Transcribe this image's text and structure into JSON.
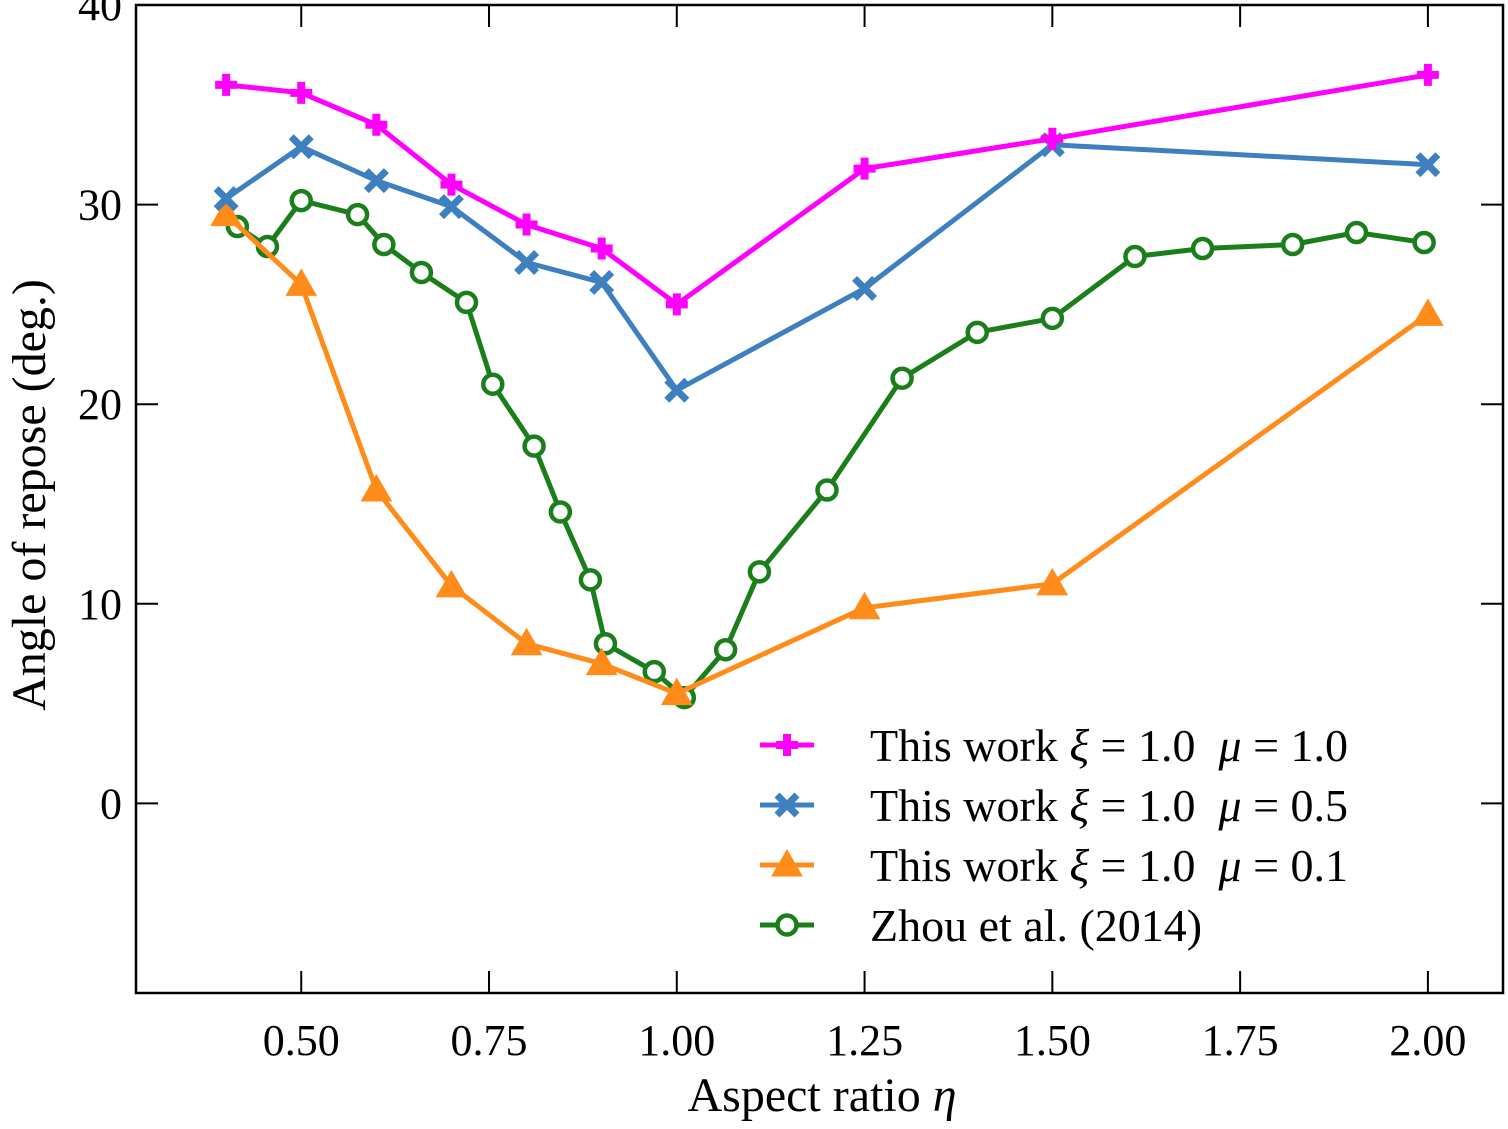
{
  "chart_data": {
    "type": "line",
    "title": "",
    "xlabel": "Aspect ratio",
    "xlabel_symbol": "η",
    "ylabel": "Angle of repose (deg.)",
    "xlim": [
      0.28,
      2.1
    ],
    "ylim": [
      -9.5,
      40
    ],
    "xticks": [
      0.5,
      0.75,
      1.0,
      1.25,
      1.5,
      1.75,
      2.0
    ],
    "xtick_labels": [
      "0.50",
      "0.75",
      "1.00",
      "1.25",
      "1.50",
      "1.75",
      "2.00"
    ],
    "yticks": [
      0,
      10,
      20,
      30,
      40
    ],
    "ytick_labels": [
      "0",
      "10",
      "20",
      "30",
      "40"
    ],
    "grid": false,
    "legend_position": "bottom-right",
    "series": [
      {
        "name": "This work ξ = 1.0  μ = 1.0",
        "legend_prefix": "This work ",
        "legend_xi": "ξ",
        "legend_xi_val": " = 1.0  ",
        "legend_mu": "μ",
        "legend_mu_val": " = 1.0",
        "color": "#ff00ff",
        "marker": "plus",
        "x": [
          0.4,
          0.5,
          0.6,
          0.7,
          0.8,
          0.9,
          1.0,
          1.25,
          1.5,
          2.0
        ],
        "y": [
          36.0,
          35.6,
          34.0,
          31.0,
          29.0,
          27.8,
          25.0,
          31.8,
          33.3,
          36.5
        ]
      },
      {
        "name": "This work ξ = 1.0  μ = 0.5",
        "legend_prefix": "This work ",
        "legend_xi": "ξ",
        "legend_xi_val": " = 1.0  ",
        "legend_mu": "μ",
        "legend_mu_val": " = 0.5",
        "color": "#3d7fbf",
        "marker": "x",
        "x": [
          0.4,
          0.5,
          0.6,
          0.7,
          0.8,
          0.9,
          1.0,
          1.25,
          1.5,
          2.0
        ],
        "y": [
          30.3,
          32.9,
          31.2,
          29.9,
          27.1,
          26.1,
          20.7,
          25.8,
          33.0,
          32.0
        ]
      },
      {
        "name": "This work ξ = 1.0  μ = 0.1",
        "legend_prefix": "This work ",
        "legend_xi": "ξ",
        "legend_xi_val": " = 1.0  ",
        "legend_mu": "μ",
        "legend_mu_val": " = 0.1",
        "color": "#ff8c1a",
        "marker": "triangle",
        "x": [
          0.4,
          0.5,
          0.6,
          0.7,
          0.8,
          0.9,
          1.0,
          1.25,
          1.5,
          2.0
        ],
        "y": [
          29.5,
          26.0,
          15.7,
          10.9,
          8.0,
          7.0,
          5.5,
          9.8,
          11.0,
          24.5
        ]
      },
      {
        "name": "Zhou et al. (2014)",
        "legend_prefix": "Zhou et al. (2014)",
        "legend_xi": "",
        "legend_xi_val": "",
        "legend_mu": "",
        "legend_mu_val": "",
        "color": "#1a7f1a",
        "marker": "circle",
        "x": [
          0.415,
          0.455,
          0.5,
          0.575,
          0.61,
          0.66,
          0.72,
          0.755,
          0.81,
          0.845,
          0.885,
          0.905,
          0.97,
          1.01,
          1.065,
          1.11,
          1.2,
          1.3,
          1.4,
          1.5,
          1.61,
          1.7,
          1.82,
          1.905,
          1.995
        ],
        "y": [
          28.9,
          27.9,
          30.2,
          29.5,
          28.0,
          26.6,
          25.1,
          21.0,
          17.9,
          14.6,
          11.2,
          8.0,
          6.6,
          5.3,
          7.7,
          11.6,
          15.7,
          21.3,
          23.6,
          24.3,
          27.4,
          27.8,
          28.0,
          28.6,
          28.1
        ]
      }
    ]
  }
}
